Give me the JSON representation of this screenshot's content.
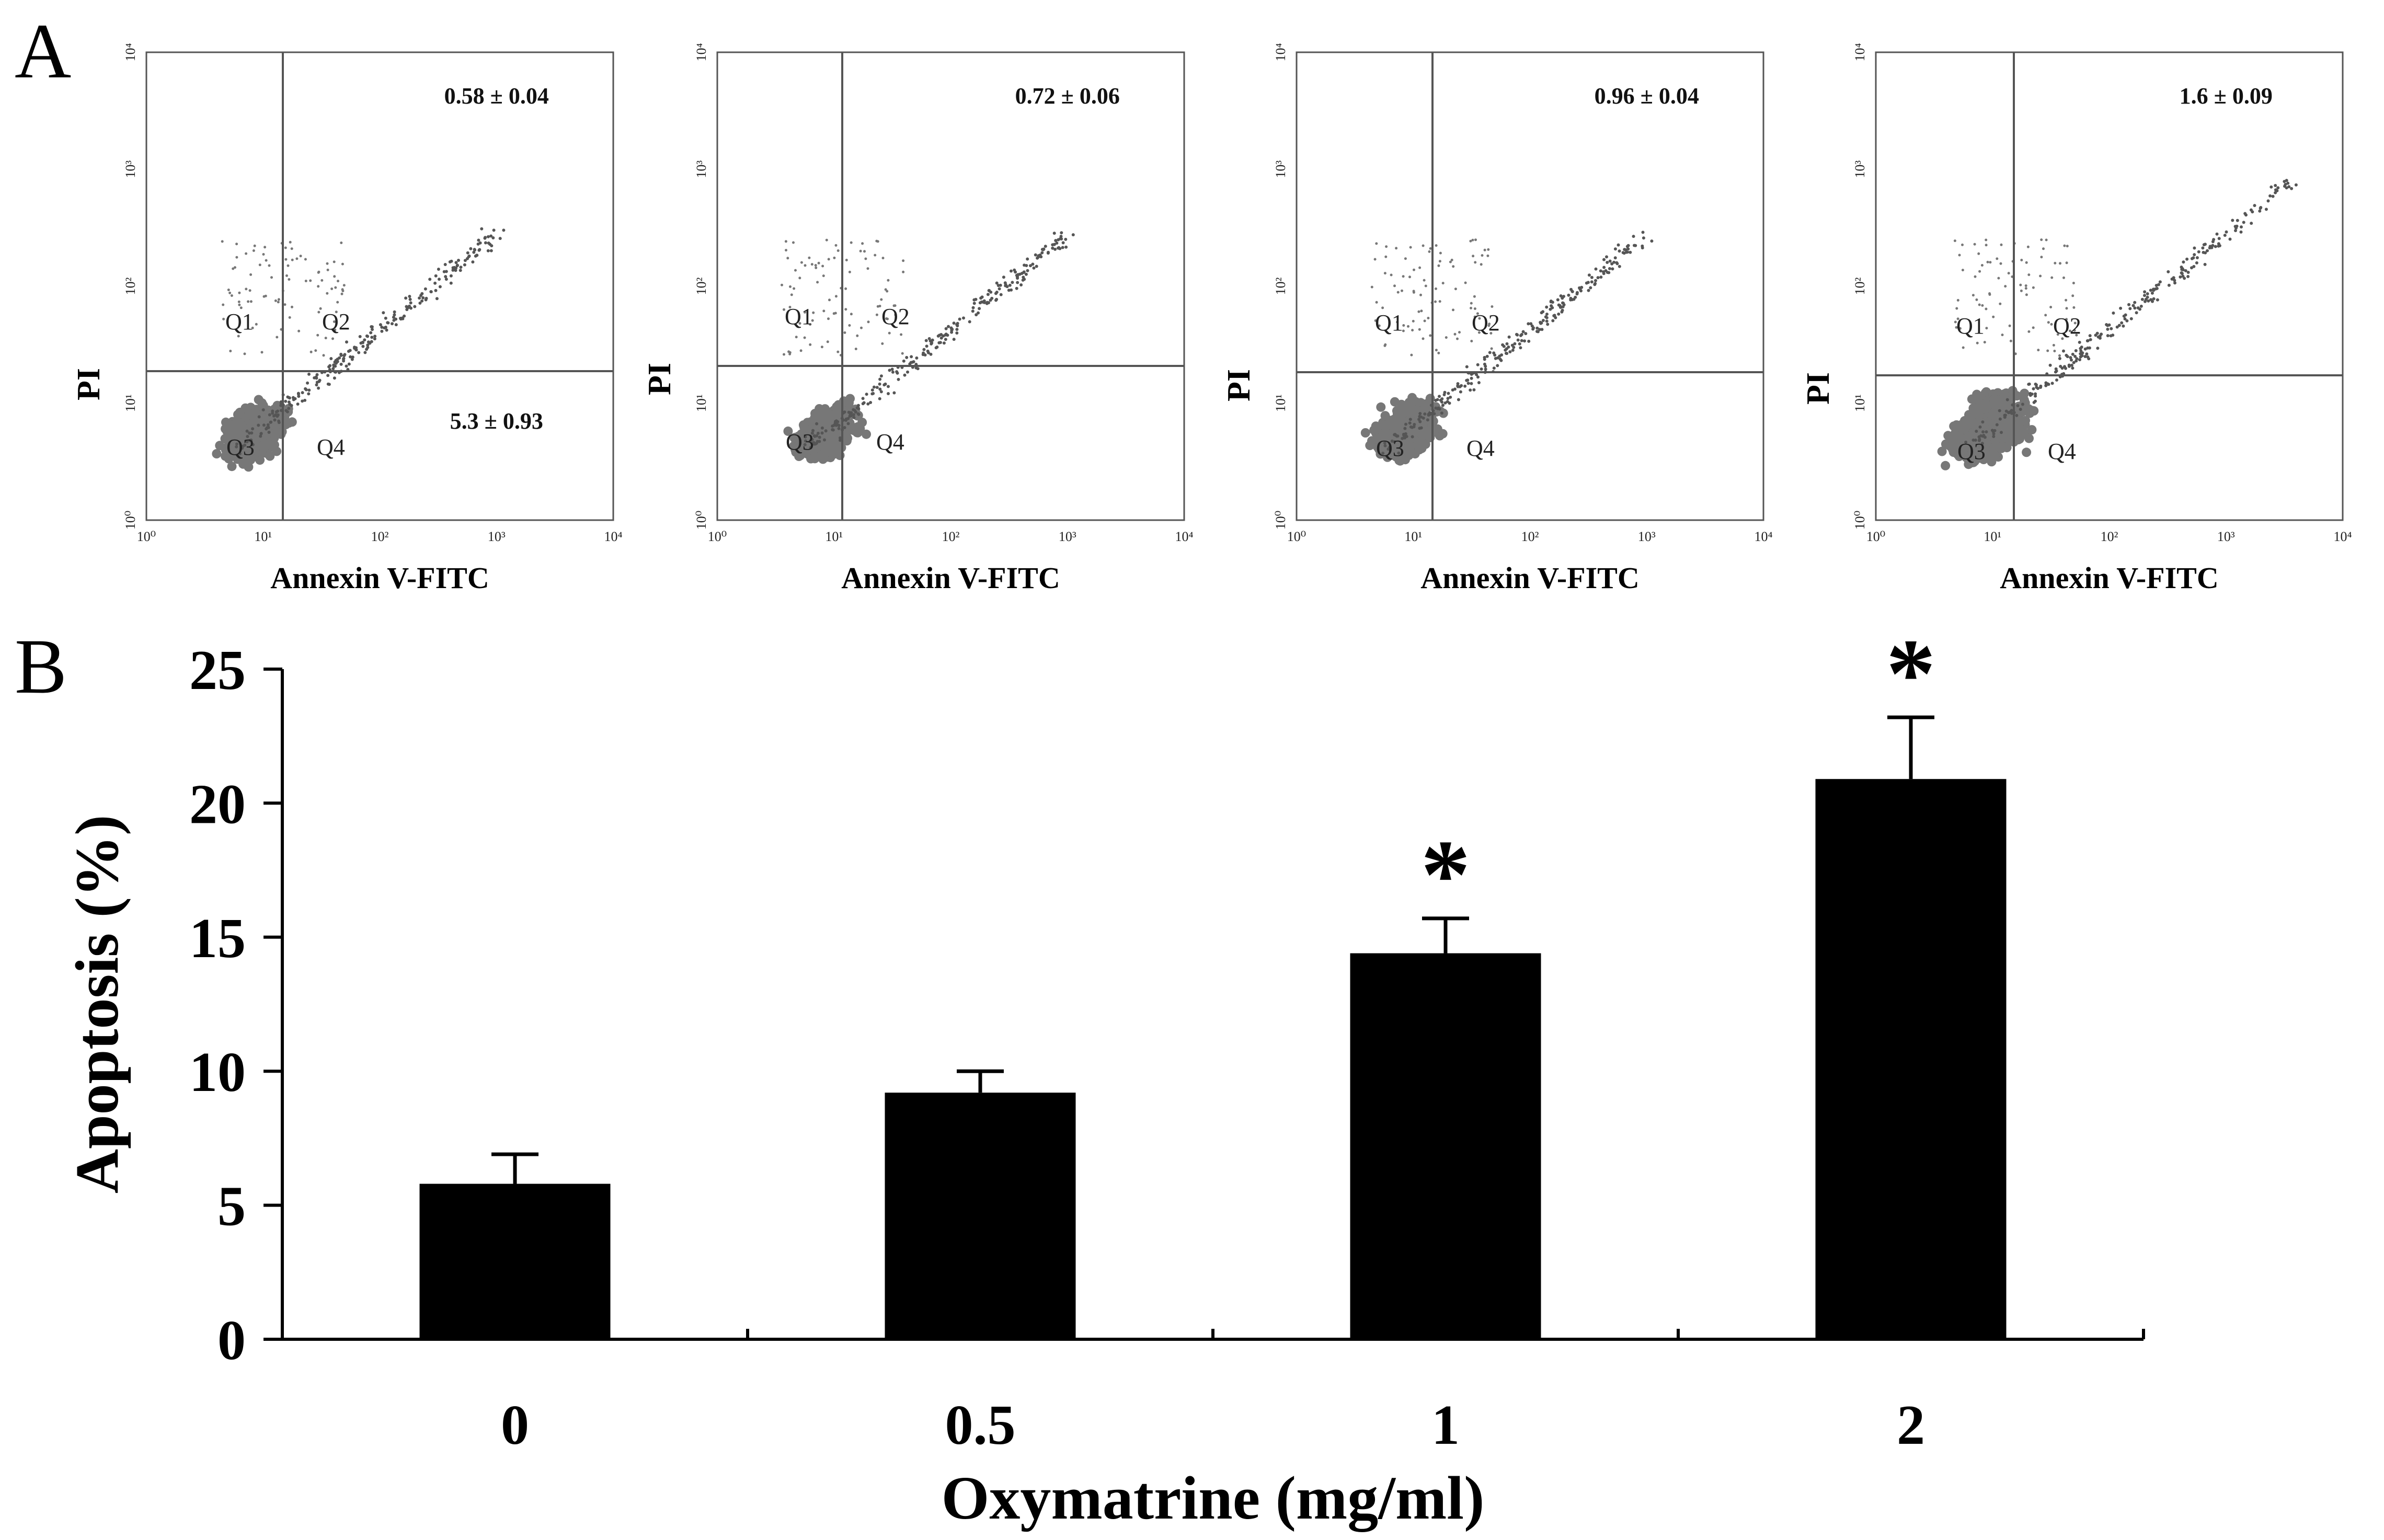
{
  "panel_labels": {
    "a": "A",
    "b": "B"
  },
  "flow_panels": [
    {
      "xlabel": "Annexin V-FITC",
      "ylabel": "PI",
      "upper_right_value": "0.58 ± 0.04",
      "lower_right_value": "5.3 ± 0.93",
      "quadrants": [
        "Q1",
        "Q2",
        "Q3",
        "Q4"
      ],
      "x_ticks": [
        "10⁰",
        "10¹",
        "10²",
        "10³",
        "10⁴"
      ],
      "y_ticks": [
        "10⁰",
        "10¹",
        "10²",
        "10³",
        "10⁴"
      ]
    },
    {
      "xlabel": "Annexin V-FITC",
      "ylabel": "PI",
      "upper_right_value": "0.72 ± 0.06",
      "lower_right_value": "",
      "quadrants": [
        "Q1",
        "Q2",
        "Q3",
        "Q4"
      ],
      "x_ticks": [
        "10⁰",
        "10¹",
        "10²",
        "10³",
        "10⁴"
      ],
      "y_ticks": [
        "10⁰",
        "10¹",
        "10²",
        "10³",
        "10⁴"
      ]
    },
    {
      "xlabel": "Annexin V-FITC",
      "ylabel": "PI",
      "upper_right_value": "0.96 ± 0.04",
      "lower_right_value": "",
      "quadrants": [
        "Q1",
        "Q2",
        "Q3",
        "Q4"
      ],
      "x_ticks": [
        "10⁰",
        "10¹",
        "10²",
        "10³",
        "10⁴"
      ],
      "y_ticks": [
        "10⁰",
        "10¹",
        "10²",
        "10³",
        "10⁴"
      ]
    },
    {
      "xlabel": "Annexin V-FITC",
      "ylabel": "PI",
      "upper_right_value": "1.6 ± 0.09",
      "lower_right_value": "",
      "quadrants": [
        "Q1",
        "Q2",
        "Q3",
        "Q4"
      ],
      "x_ticks": [
        "10⁰",
        "10¹",
        "10²",
        "10³",
        "10⁴"
      ],
      "y_ticks": [
        "10⁰",
        "10¹",
        "10²",
        "10³",
        "10⁴"
      ]
    }
  ],
  "chart_data": {
    "type": "bar",
    "categories": [
      "0",
      "0.5",
      "1",
      "2"
    ],
    "values": [
      5.8,
      9.2,
      14.4,
      20.9
    ],
    "errors": [
      1.1,
      0.8,
      1.3,
      2.3
    ],
    "significance": [
      "",
      "",
      "*",
      "*"
    ],
    "xlabel": "Oxymatrine (mg/ml)",
    "ylabel": "Apoptosis (%)",
    "ylim": [
      0,
      25
    ],
    "yticks": [
      0,
      5,
      10,
      15,
      20,
      25
    ],
    "bar_color": "#000000",
    "grid": false
  }
}
